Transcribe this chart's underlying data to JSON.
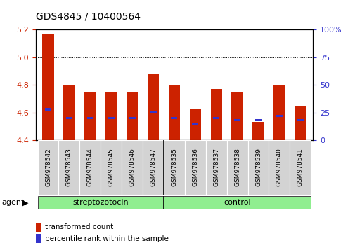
{
  "title": "GDS4845 / 10400564",
  "samples": [
    "GSM978542",
    "GSM978543",
    "GSM978544",
    "GSM978545",
    "GSM978546",
    "GSM978547",
    "GSM978535",
    "GSM978536",
    "GSM978537",
    "GSM978538",
    "GSM978539",
    "GSM978540",
    "GSM978541"
  ],
  "red_values": [
    5.17,
    4.8,
    4.75,
    4.75,
    4.75,
    4.88,
    4.8,
    4.63,
    4.77,
    4.75,
    4.53,
    4.8,
    4.65
  ],
  "blue_percentiles": [
    28,
    20,
    20,
    20,
    20,
    25,
    20,
    15,
    20,
    18,
    18,
    22,
    18
  ],
  "groups": [
    {
      "label": "streptozotocin",
      "start": 0,
      "end": 6,
      "color": "#90ee90"
    },
    {
      "label": "control",
      "start": 6,
      "end": 13,
      "color": "#90ee90"
    }
  ],
  "group_divider": 6,
  "ymin": 4.4,
  "ymax": 5.2,
  "y2min": 0,
  "y2max": 100,
  "yticks": [
    4.4,
    4.6,
    4.8,
    5.0,
    5.2
  ],
  "y2ticks": [
    0,
    25,
    50,
    75,
    100
  ],
  "bar_color": "#cc2200",
  "blue_color": "#3333cc",
  "bg_color": "#ffffff",
  "plot_bg": "#ffffff",
  "title_fontsize": 10,
  "axis_label_color_left": "#cc2200",
  "axis_label_color_right": "#3333cc",
  "agent_label": "agent",
  "legend_red": "transformed count",
  "legend_blue": "percentile rank within the sample",
  "bar_width": 0.55
}
